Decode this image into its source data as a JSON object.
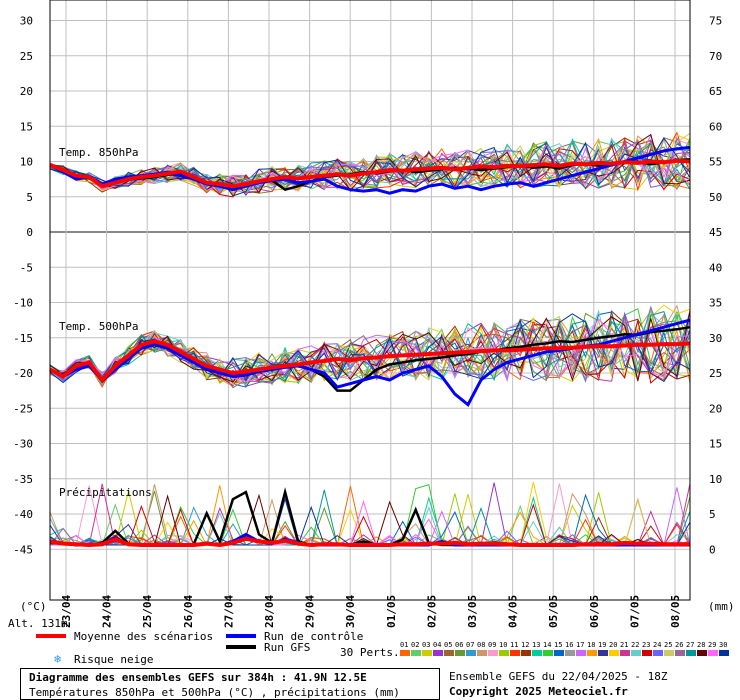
{
  "chart_data": {
    "type": "line",
    "title": "Diagramme des ensembles GEFS sur 384h : 41.9N 12.5E",
    "subtitle": "Températures 850hPa et 500hPa (°C) , précipitations (mm)",
    "panels": {
      "t850_label": "Temp. 850hPa",
      "t500_label": "Temp. 500hPa",
      "precip_label": "Précipitations"
    },
    "left_axis": {
      "unit": "(°C)",
      "ticks": [
        "30",
        "25",
        "20",
        "15",
        "10",
        "5",
        "0",
        "-5",
        "-10",
        "-15",
        "-20",
        "-25",
        "-30",
        "-35",
        "-40",
        "-45"
      ],
      "range": [
        -50,
        30
      ]
    },
    "right_axis": {
      "unit": "(mm)",
      "ticks": [
        "75",
        "70",
        "65",
        "60",
        "55",
        "50",
        "45",
        "40",
        "35",
        "30",
        "25",
        "20",
        "15",
        "10",
        "5",
        "0"
      ]
    },
    "x_ticks": [
      "23/04",
      "24/04",
      "25/04",
      "26/04",
      "27/04",
      "28/04",
      "29/04",
      "30/04",
      "01/05",
      "02/05",
      "03/05",
      "04/05",
      "05/05",
      "06/05",
      "07/05",
      "08/05"
    ],
    "x_range_hours": [
      0,
      384
    ],
    "altitude": "Alt. 131m",
    "legend": {
      "mean": "Moyenne des scénarios",
      "control": "Run de contrôle",
      "gfs": "Run GFS",
      "snow": "Risque neige",
      "perts_label": "30 Perts.",
      "perts": [
        "01",
        "02",
        "03",
        "04",
        "05",
        "06",
        "07",
        "08",
        "09",
        "10",
        "11",
        "12",
        "13",
        "14",
        "15",
        "16",
        "17",
        "18",
        "19",
        "20",
        "21",
        "22",
        "23",
        "24",
        "25",
        "26",
        "27",
        "28",
        "29",
        "30"
      ]
    },
    "colors": {
      "mean": "#ff0000",
      "control": "#0000ff",
      "gfs": "#000000",
      "grid": "#c0c0c0",
      "snow": "#3399ff",
      "members": [
        "#ff6600",
        "#66cc66",
        "#cccc00",
        "#9933cc",
        "#996633",
        "#669933",
        "#3399cc",
        "#cc9966",
        "#ff99cc",
        "#99cc00",
        "#ff3300",
        "#993300",
        "#00cc99",
        "#33cc33",
        "#0066cc",
        "#999999",
        "#cc66ff",
        "#ff9900",
        "#333399",
        "#ffcc00",
        "#cc3399",
        "#66cccc",
        "#cc0000",
        "#6666ff",
        "#cccc66",
        "#996699",
        "#009999",
        "#660000",
        "#ff66ff",
        "#003399"
      ]
    },
    "series": [
      {
        "name": "Moyenne des scénarios",
        "t850": [
          9.5,
          8.8,
          8.0,
          7.8,
          6.5,
          7.0,
          7.5,
          7.8,
          8.0,
          8.3,
          8.6,
          7.8,
          7.0,
          6.8,
          6.5,
          6.8,
          7.2,
          7.5,
          7.8,
          7.6,
          7.8,
          8.0,
          8.2,
          8.0,
          8.3,
          8.5,
          8.8,
          8.7,
          8.9,
          9.0,
          9.1,
          8.9,
          9.1,
          9.3,
          9.2,
          9.4,
          9.3,
          9.5,
          9.6,
          9.4,
          9.7,
          9.6,
          9.8,
          9.7,
          9.9,
          9.8,
          10.0,
          9.9,
          10.1,
          10.0
        ],
        "t500": [
          -19.5,
          -20.5,
          -19.0,
          -18.5,
          -21.0,
          -19.0,
          -17.5,
          -16.0,
          -15.5,
          -16.0,
          -17.0,
          -18.0,
          -19.0,
          -19.5,
          -20.0,
          -19.8,
          -19.5,
          -19.2,
          -19.0,
          -18.8,
          -18.5,
          -18.3,
          -18.0,
          -18.2,
          -17.9,
          -17.8,
          -17.6,
          -17.5,
          -17.4,
          -17.3,
          -17.2,
          -17.1,
          -17.0,
          -16.9,
          -16.8,
          -16.8,
          -16.7,
          -16.6,
          -16.5,
          -16.5,
          -16.4,
          -16.3,
          -16.2,
          -16.2,
          -16.1,
          -16.0,
          -16.0,
          -15.9,
          -15.9,
          -15.8
        ],
        "precip": [
          0.5,
          0.2,
          0.1,
          0,
          0.1,
          0.8,
          0.1,
          0,
          0,
          0,
          0,
          0,
          0.2,
          0,
          0.3,
          0.9,
          0.5,
          0.3,
          0.6,
          0.2,
          0,
          0.1,
          0.1,
          0,
          0,
          0,
          0,
          0.1,
          0.1,
          0.2,
          0.2,
          0.3,
          0.1,
          0.2,
          0.2,
          0.1,
          0,
          0,
          0,
          0,
          0,
          0.1,
          0.1,
          0.1,
          0.3,
          0.2,
          0.2,
          0.1,
          0.1,
          0.1
        ]
      },
      {
        "name": "Run de contrôle",
        "t850": [
          9.5,
          8.5,
          7.5,
          7.8,
          6.8,
          7.5,
          7.8,
          8.0,
          8.2,
          8.5,
          8.0,
          7.5,
          6.8,
          6.5,
          6.0,
          6.5,
          7.0,
          7.3,
          7.5,
          7.0,
          7.2,
          7.5,
          6.5,
          6.0,
          5.8,
          6.0,
          5.5,
          6.0,
          5.8,
          6.5,
          6.8,
          6.2,
          6.5,
          6.0,
          6.5,
          6.8,
          7.0,
          6.5,
          7.0,
          7.5,
          8.0,
          8.5,
          9.0,
          9.5,
          10.0,
          10.5,
          11.0,
          11.5,
          11.8,
          12.0
        ],
        "t500": [
          -19.5,
          -20.5,
          -19.5,
          -19.0,
          -21.0,
          -19.5,
          -18.0,
          -16.5,
          -16.0,
          -16.5,
          -17.5,
          -18.5,
          -19.5,
          -20.0,
          -20.5,
          -20.3,
          -19.8,
          -19.5,
          -19.2,
          -19.0,
          -19.5,
          -20.0,
          -22.0,
          -21.5,
          -21.0,
          -20.5,
          -21.0,
          -20.0,
          -19.5,
          -19.0,
          -20.5,
          -23.0,
          -24.5,
          -21.0,
          -19.5,
          -18.5,
          -18.0,
          -17.5,
          -17.0,
          -16.8,
          -16.5,
          -16.2,
          -16.0,
          -15.5,
          -15.0,
          -14.5,
          -14.0,
          -13.5,
          -13.0,
          -12.5
        ],
        "precip": [
          0.4,
          0.3,
          0,
          0,
          0.2,
          1.0,
          0.1,
          0,
          0,
          0,
          0,
          0,
          0.3,
          0,
          0.5,
          1.5,
          0.5,
          0.2,
          0.8,
          0.3,
          0,
          0,
          0,
          0,
          0,
          0,
          0,
          0,
          0,
          0,
          0.5,
          0,
          0,
          0,
          0,
          0,
          0,
          0,
          0,
          0,
          0,
          0,
          0,
          0,
          0,
          0,
          0,
          0,
          0,
          0
        ]
      },
      {
        "name": "Run GFS",
        "t850": [
          9.5,
          8.6,
          7.8,
          7.6,
          6.6,
          7.2,
          7.4,
          7.6,
          7.8,
          8.1,
          8.4,
          7.6,
          6.9,
          6.6,
          6.2,
          6.6,
          7.0,
          7.3,
          6.0,
          6.5,
          7.2,
          7.8,
          8.0,
          8.2,
          8.5,
          8.3,
          8.6,
          8.8,
          8.5,
          8.7,
          8.9,
          9.1,
          9.0,
          8.8,
          9.0,
          9.2,
          9.4,
          9.1,
          9.3,
          9.0,
          9.5,
          9.7,
          9.4,
          9.6,
          9.8,
          10.0,
          9.6,
          9.9,
          10.2,
          10.3
        ],
        "t500": [
          -19.5,
          -20.3,
          -19.2,
          -18.8,
          -21.2,
          -19.4,
          -17.8,
          -16.4,
          -15.8,
          -16.2,
          -17.2,
          -18.2,
          -19.2,
          -19.8,
          -20.2,
          -20.0,
          -19.6,
          -19.4,
          -19.2,
          -18.9,
          -19.5,
          -20.5,
          -22.5,
          -22.5,
          -21.0,
          -19.5,
          -18.8,
          -18.5,
          -18.2,
          -18.0,
          -17.8,
          -17.5,
          -17.3,
          -17.0,
          -16.8,
          -16.5,
          -16.3,
          -16.0,
          -15.8,
          -15.5,
          -15.6,
          -15.3,
          -15.0,
          -14.8,
          -14.5,
          -14.6,
          -14.2,
          -14.0,
          -13.8,
          -13.5
        ],
        "precip": [
          0.3,
          0.2,
          0,
          0,
          0.3,
          2.0,
          0.2,
          0,
          0,
          0,
          0,
          0.1,
          4.5,
          0.5,
          6.5,
          7.5,
          1.5,
          0.3,
          7.5,
          0.5,
          0,
          0,
          0,
          0,
          0.5,
          0,
          0,
          0.8,
          5.0,
          0.3,
          0,
          0,
          0,
          0,
          0,
          0,
          0,
          0,
          0,
          0,
          0,
          0,
          0,
          0,
          0,
          0,
          0,
          0,
          0,
          0
        ]
      }
    ]
  }
}
